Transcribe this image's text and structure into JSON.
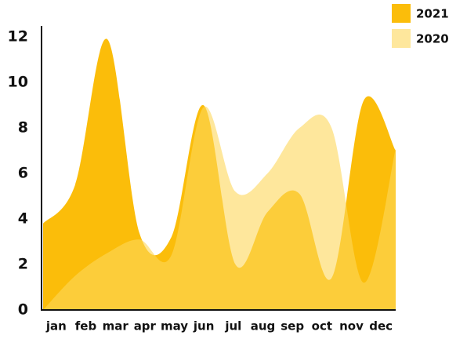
{
  "chart_data": {
    "type": "area",
    "categories": [
      "jan",
      "feb",
      "mar",
      "apr",
      "may",
      "jun",
      "jul",
      "aug",
      "sep",
      "oct",
      "nov",
      "dec"
    ],
    "series": [
      {
        "name": "2021",
        "color": "#fbbd0a",
        "values": [
          3.8,
          5.5,
          11.9,
          3.4,
          3.2,
          9,
          2,
          4.3,
          5.1,
          1.4,
          9.2,
          7
        ]
      },
      {
        "name": "2020",
        "color": "#fed75a",
        "values": [
          0,
          1.5,
          2.5,
          3.1,
          2.4,
          8.9,
          5.2,
          6,
          8,
          8,
          1.2,
          7.1
        ]
      }
    ],
    "ylim": [
      0,
      12
    ],
    "yticks": [
      0,
      2,
      4,
      6,
      8,
      10,
      12
    ],
    "legend": "top-right"
  }
}
